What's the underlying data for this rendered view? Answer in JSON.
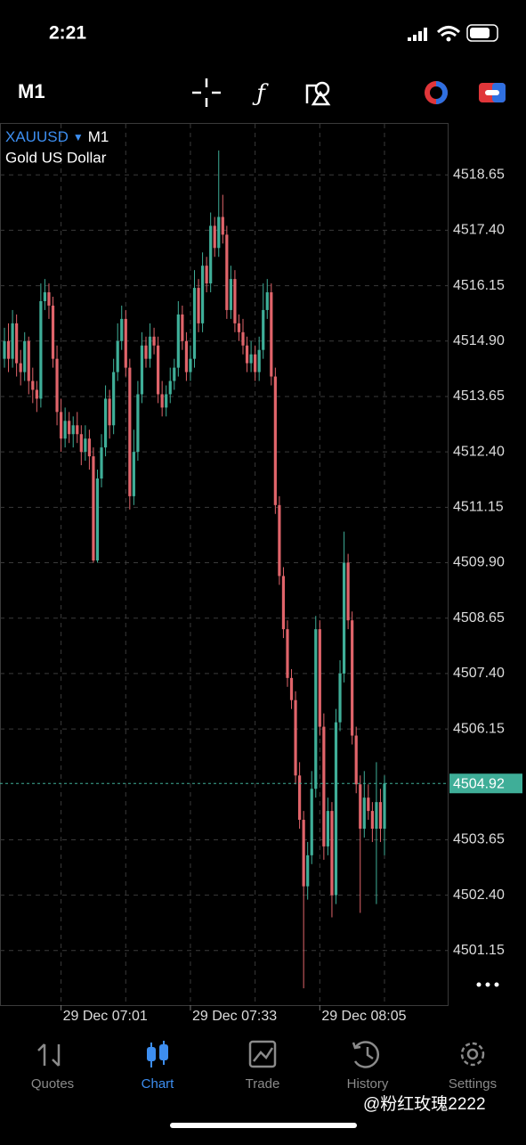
{
  "status_bar": {
    "time": "2:21"
  },
  "toolbar": {
    "timeframe": "M1"
  },
  "chart_data": {
    "type": "candlestick",
    "symbol": "XAUUSD",
    "timeframe": "M1",
    "description": "Gold US Dollar",
    "x": [
      null,
      null,
      null,
      null,
      null,
      null,
      null,
      null,
      null,
      null,
      null,
      null,
      null,
      null,
      "29 Dec 07:01",
      null,
      null,
      null,
      null,
      null,
      null,
      null,
      null,
      null,
      null,
      null,
      null,
      null,
      null,
      null,
      null,
      null,
      null,
      null,
      null,
      null,
      null,
      null,
      null,
      null,
      null,
      null,
      null,
      null,
      null,
      null,
      "29 Dec 07:33",
      null,
      null,
      null,
      null,
      null,
      null,
      null,
      null,
      null,
      null,
      null,
      null,
      null,
      null,
      null,
      null,
      null,
      null,
      null,
      null,
      null,
      null,
      null,
      null,
      null,
      null,
      null,
      null,
      null,
      null,
      null,
      "29 Dec 08:05",
      null,
      null,
      null,
      null,
      null,
      null,
      null,
      null,
      null,
      null,
      null,
      null,
      null,
      null,
      null,
      null
    ],
    "open": [
      4514.5,
      4514.9,
      4514.5,
      4515.3,
      4514.4,
      4514.2,
      4514.9,
      4514.0,
      4513.8,
      4513.6,
      4515.8,
      4516.0,
      4515.7,
      4514.5,
      4513.3,
      4512.7,
      4513.1,
      4512.8,
      4513.0,
      4512.8,
      4512.4,
      4512.7,
      4512.3,
      4509.95,
      4511.8,
      4512.5,
      4513.6,
      4513.0,
      4514.2,
      4514.9,
      4515.4,
      4514.3,
      4511.4,
      4512.4,
      4513.7,
      4514.8,
      4514.5,
      4515.0,
      4514.8,
      4513.7,
      4513.4,
      4513.7,
      4514.0,
      4514.3,
      4515.5,
      4514.9,
      4514.2,
      4514.5,
      4516.1,
      4515.3,
      4516.6,
      4516.2,
      4517.5,
      4517.0,
      4517.7,
      4517.3,
      4515.6,
      4516.3,
      4515.3,
      4515.1,
      4514.8,
      4514.4,
      4514.6,
      4514.2,
      4514.7,
      4515.6,
      4516.0,
      4514.1,
      4511.2,
      4509.6,
      4508.4,
      4507.3,
      4506.8,
      4505.1,
      4504.1,
      4502.6,
      4503.3,
      4504.8,
      4508.4,
      4506.2,
      4503.5,
      4504.3,
      4502.4,
      4506.3,
      4507.4,
      4509.9,
      4508.6,
      4506.0,
      4504.9,
      4503.9,
      4504.6,
      4504.3,
      4503.9,
      4504.5,
      4503.9
    ],
    "high": [
      4515.2,
      4515.3,
      4515.6,
      4515.5,
      4514.7,
      4515.1,
      4515.0,
      4514.3,
      4514.0,
      4516.2,
      4516.3,
      4516.2,
      4515.9,
      4514.8,
      4513.6,
      4513.4,
      4513.3,
      4513.2,
      4513.3,
      4513.0,
      4513.0,
      4512.9,
      4512.5,
      4512.0,
      4512.8,
      4513.9,
      4513.8,
      4514.5,
      4515.3,
      4515.7,
      4515.6,
      4514.5,
      4512.9,
      4514.0,
      4515.1,
      4515.0,
      4515.3,
      4515.2,
      4515.0,
      4514.0,
      4513.9,
      4514.3,
      4514.5,
      4515.8,
      4515.7,
      4515.1,
      4514.8,
      4516.5,
      4516.3,
      4516.9,
      4516.8,
      4517.8,
      4517.7,
      4519.2,
      4518.2,
      4517.5,
      4516.6,
      4516.5,
      4515.5,
      4515.4,
      4515.0,
      4514.9,
      4514.8,
      4515.0,
      4516.2,
      4516.3,
      4516.2,
      4514.3,
      4511.4,
      4509.8,
      4508.6,
      4507.5,
      4507.0,
      4505.4,
      4504.3,
      4503.6,
      4505.2,
      4508.7,
      4508.6,
      4506.5,
      4504.6,
      4504.5,
      4506.6,
      4507.7,
      4510.6,
      4510.1,
      4508.8,
      4506.2,
      4505.1,
      4505.2,
      4504.9,
      4504.5,
      4505.4,
      4504.8,
      4505.1
    ],
    "low": [
      4514.3,
      4514.2,
      4514.3,
      4514.1,
      4513.9,
      4514.0,
      4513.7,
      4513.5,
      4513.3,
      4513.4,
      4515.6,
      4515.4,
      4514.3,
      4513.0,
      4512.4,
      4512.5,
      4512.6,
      4512.5,
      4512.6,
      4512.1,
      4512.2,
      4512.0,
      4509.9,
      4509.9,
      4511.6,
      4512.3,
      4512.7,
      4512.8,
      4514.0,
      4514.7,
      4514.1,
      4511.1,
      4511.2,
      4512.2,
      4513.5,
      4514.3,
      4514.3,
      4514.6,
      4513.5,
      4513.2,
      4513.2,
      4513.5,
      4513.8,
      4514.1,
      4514.7,
      4514.0,
      4514.0,
      4514.3,
      4515.1,
      4515.1,
      4516.0,
      4516.0,
      4516.8,
      4516.8,
      4517.1,
      4515.4,
      4515.4,
      4515.1,
      4514.9,
      4514.6,
      4514.2,
      4514.2,
      4514.0,
      4514.0,
      4514.5,
      4515.4,
      4513.9,
      4511.0,
      4509.4,
      4508.2,
      4507.1,
      4506.6,
      4504.9,
      4503.9,
      4500.3,
      4502.3,
      4503.1,
      4504.6,
      4506.0,
      4503.2,
      4503.3,
      4501.9,
      4502.2,
      4506.1,
      4507.2,
      4508.4,
      4505.8,
      4504.7,
      4502.0,
      4503.7,
      4504.1,
      4503.6,
      4502.2,
      4503.6,
      4503.3
    ],
    "close": [
      4514.9,
      4514.5,
      4515.3,
      4514.4,
      4514.2,
      4514.9,
      4514.0,
      4513.8,
      4513.6,
      4515.8,
      4516.0,
      4515.7,
      4514.5,
      4513.3,
      4512.7,
      4513.1,
      4512.8,
      4513.0,
      4512.8,
      4512.4,
      4512.7,
      4512.3,
      4509.95,
      4511.8,
      4512.5,
      4513.6,
      4513.0,
      4514.2,
      4514.9,
      4515.4,
      4514.3,
      4511.4,
      4512.4,
      4513.7,
      4514.8,
      4514.5,
      4515.0,
      4514.8,
      4513.7,
      4513.4,
      4513.7,
      4514.0,
      4514.3,
      4515.5,
      4514.9,
      4514.2,
      4514.5,
      4516.1,
      4515.3,
      4516.6,
      4516.2,
      4517.5,
      4517.0,
      4517.7,
      4517.3,
      4515.6,
      4516.3,
      4515.3,
      4515.1,
      4514.8,
      4514.4,
      4514.6,
      4514.2,
      4514.7,
      4515.6,
      4516.0,
      4514.1,
      4511.2,
      4509.6,
      4508.4,
      4507.3,
      4506.8,
      4505.1,
      4504.1,
      4502.6,
      4503.3,
      4504.8,
      4508.4,
      4506.2,
      4503.5,
      4504.3,
      4502.4,
      4506.3,
      4507.4,
      4509.9,
      4508.6,
      4506.0,
      4504.9,
      4503.9,
      4504.6,
      4504.3,
      4503.9,
      4504.5,
      4503.9,
      4504.92
    ],
    "ylim": [
      4499.92,
      4519.8
    ],
    "yticks": [
      4518.65,
      {
        "value": 4517.4,
        "label": "4517.40"
      },
      4516.15,
      {
        "value": 4514.9,
        "label": "4514.90"
      },
      4513.65,
      {
        "value": 4512.4,
        "label": "4512.40"
      },
      4511.15,
      {
        "value": 4509.9,
        "label": "4509.90"
      },
      4508.65,
      {
        "value": 4507.4,
        "label": "4507.40"
      },
      4506.15,
      4503.65,
      {
        "value": 4502.4,
        "label": "4502.40"
      },
      4501.15
    ],
    "last_price": 4504.92,
    "up_color": "#3fae98",
    "down_color": "#e0646a",
    "grid": true
  },
  "tabs": [
    "Quotes",
    "Chart",
    "Trade",
    "History",
    "Settings"
  ],
  "active_tab": 1,
  "watermark": "@粉红玫瑰2222"
}
